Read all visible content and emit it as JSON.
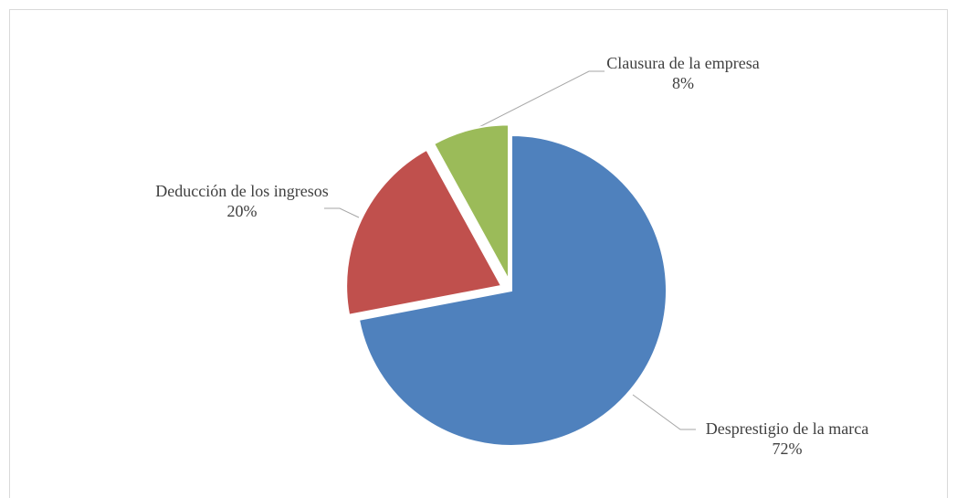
{
  "chart_data": {
    "type": "pie",
    "categories": [
      "Desprestigio de la marca",
      "Deducción de los ingresos",
      "Clausura de la empresa"
    ],
    "values": [
      72,
      20,
      8
    ],
    "value_labels": [
      "72%",
      "20%",
      "8%"
    ],
    "colors": [
      "#4f81bd",
      "#c0504d",
      "#9bbb59"
    ]
  }
}
